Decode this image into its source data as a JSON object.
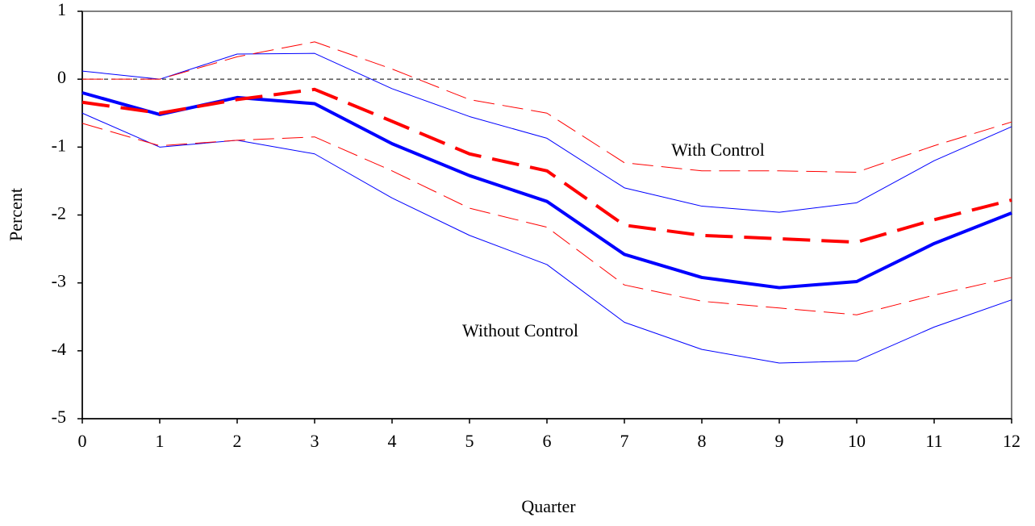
{
  "chart_data": {
    "type": "line",
    "x_label": "Quarter",
    "y_label": "Percent",
    "x": [
      0,
      1,
      2,
      3,
      4,
      5,
      6,
      7,
      8,
      9,
      10,
      11,
      12
    ],
    "xlim": [
      0,
      12
    ],
    "xticks": [
      0,
      1,
      2,
      3,
      4,
      5,
      6,
      7,
      8,
      9,
      10,
      11,
      12
    ],
    "ylim": [
      -5,
      1
    ],
    "yticks": [
      -5,
      -4,
      -3,
      -2,
      -1,
      0,
      1
    ],
    "zero_line": true,
    "annotations": [
      "With Control",
      "Without Control"
    ],
    "series": [
      {
        "color": "#0000ff",
        "width": 4,
        "dashed": false,
        "values": [
          -0.2,
          -0.52,
          -0.27,
          -0.36,
          -0.95,
          -1.42,
          -1.8,
          -2.58,
          -2.92,
          -3.07,
          -2.98,
          -2.42,
          -1.97
        ]
      },
      {
        "color": "#0000ff",
        "width": 1,
        "dashed": false,
        "values": [
          0.12,
          0.0,
          0.37,
          0.38,
          -0.14,
          -0.55,
          -0.87,
          -1.6,
          -1.87,
          -1.96,
          -1.82,
          -1.2,
          -0.7
        ]
      },
      {
        "color": "#0000ff",
        "width": 1,
        "dashed": false,
        "values": [
          -0.5,
          -1.0,
          -0.9,
          -1.1,
          -1.75,
          -2.3,
          -2.73,
          -3.58,
          -3.98,
          -4.18,
          -4.15,
          -3.65,
          -3.25
        ]
      },
      {
        "color": "#ff0000",
        "width": 4,
        "dashed": true,
        "values": [
          -0.34,
          -0.5,
          -0.3,
          -0.15,
          -0.62,
          -1.1,
          -1.35,
          -2.15,
          -2.3,
          -2.35,
          -2.4,
          -2.07,
          -1.78
        ]
      },
      {
        "color": "#ff0000",
        "width": 1,
        "dashed": true,
        "values": [
          0.0,
          0.0,
          0.33,
          0.55,
          0.15,
          -0.3,
          -0.5,
          -1.23,
          -1.35,
          -1.35,
          -1.37,
          -0.98,
          -0.63
        ]
      },
      {
        "color": "#ff0000",
        "width": 1,
        "dashed": true,
        "values": [
          -0.65,
          -0.98,
          -0.9,
          -0.85,
          -1.35,
          -1.9,
          -2.18,
          -3.03,
          -3.27,
          -3.37,
          -3.47,
          -3.18,
          -2.92
        ]
      }
    ]
  }
}
